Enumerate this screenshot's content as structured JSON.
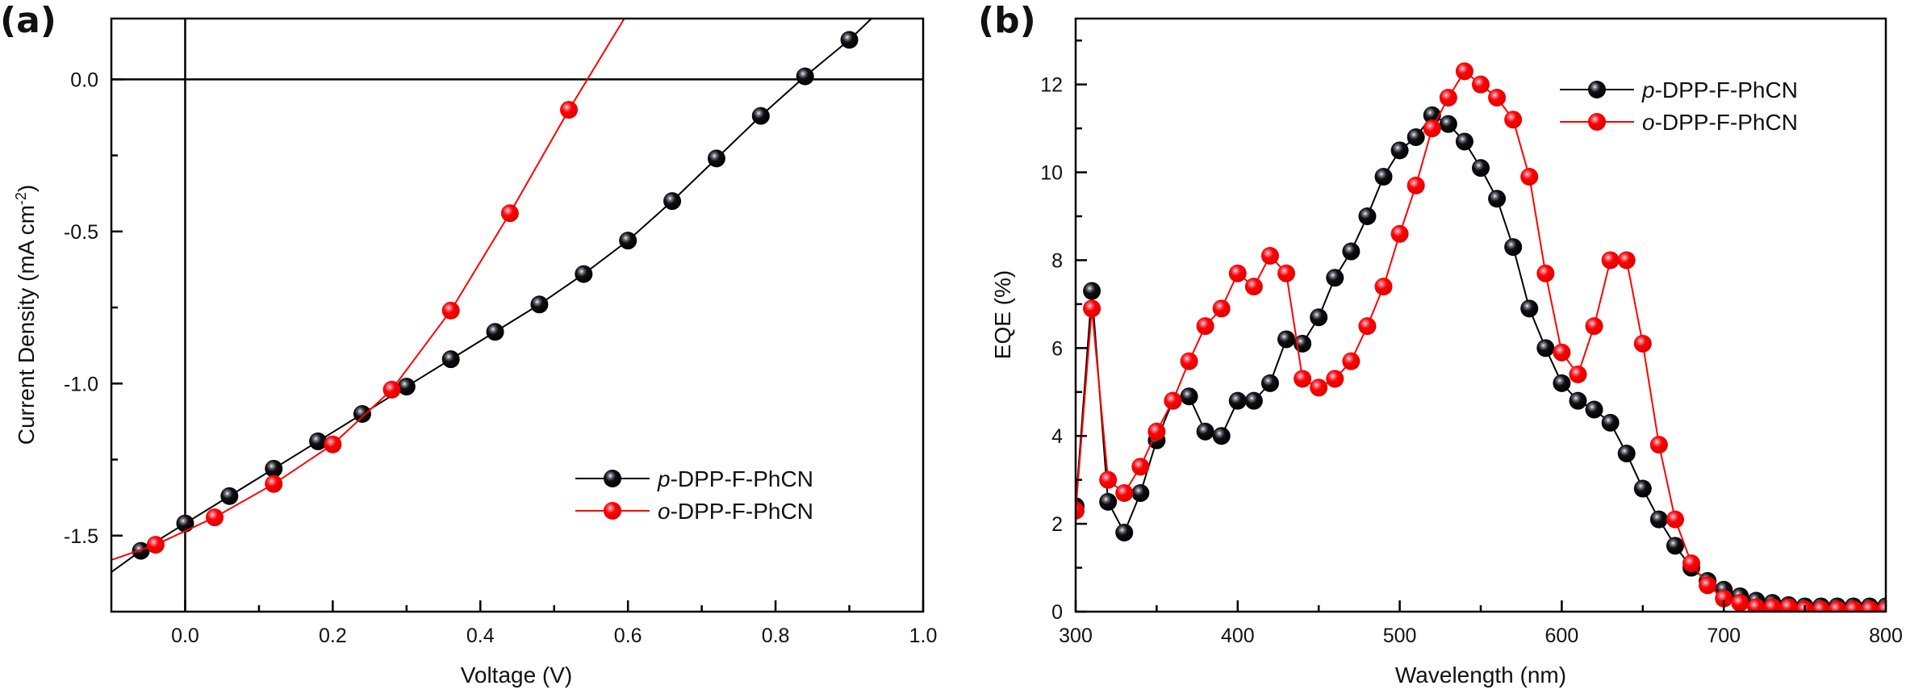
{
  "chart_data": [
    {
      "panel_label": "(a)",
      "type": "line",
      "title": "",
      "xlabel": "Voltage (V)",
      "ylabel": "Current Density (mA cm",
      "ylabel_sup": "-2",
      "ylabel_close": ")",
      "xlim": [
        -0.1,
        1.0
      ],
      "ylim": [
        -1.75,
        0.2
      ],
      "xticks": [
        0.0,
        0.2,
        0.4,
        0.6,
        0.8,
        1.0
      ],
      "xtick_labels": [
        "0.0",
        "0.2",
        "0.4",
        "0.6",
        "0.8",
        "1.0"
      ],
      "xminor": [
        -0.1,
        0.1,
        0.3,
        0.5,
        0.7,
        0.9
      ],
      "yticks": [
        0.0,
        -0.5,
        -1.0,
        -1.5
      ],
      "ytick_labels": [
        "0.0",
        "-0.5",
        "-1.0",
        "-1.5"
      ],
      "yminor": [
        -0.25,
        -0.75,
        -1.25
      ],
      "reference_lines": {
        "x": 0.0,
        "y": 0.0
      },
      "grid": false,
      "legend_position": "bottom-right",
      "series": [
        {
          "name": "p-DPP-F-PhCN",
          "prefix": "p",
          "suffix": "-DPP-F-PhCN",
          "color": "#000000",
          "x": [
            -0.06,
            0.0,
            0.06,
            0.12,
            0.18,
            0.24,
            0.3,
            0.36,
            0.42,
            0.48,
            0.54,
            0.6,
            0.66,
            0.72,
            0.78,
            0.84,
            0.9
          ],
          "y": [
            -1.55,
            -1.46,
            -1.37,
            -1.28,
            -1.19,
            -1.1,
            -1.01,
            -0.92,
            -0.83,
            -0.74,
            -0.64,
            -0.53,
            -0.4,
            -0.26,
            -0.12,
            0.01,
            0.13
          ],
          "line_extend": {
            "x0": -0.1,
            "y0": -1.62,
            "x1": 0.93,
            "y1": 0.2
          }
        },
        {
          "name": "o-DPP-F-PhCN",
          "prefix": "o",
          "suffix": "-DPP-F-PhCN",
          "color": "#ff0000",
          "x": [
            -0.04,
            0.04,
            0.12,
            0.2,
            0.28,
            0.36,
            0.44,
            0.52
          ],
          "y": [
            -1.53,
            -1.44,
            -1.33,
            -1.2,
            -1.02,
            -0.76,
            -0.44,
            -0.1
          ],
          "line_extend": {
            "x0": -0.1,
            "y0": -1.58,
            "x1": 0.595,
            "y1": 0.2
          }
        }
      ]
    },
    {
      "panel_label": "(b)",
      "type": "line",
      "title": "",
      "xlabel": "Wavelength (nm)",
      "ylabel": "EQE (%)",
      "xlim": [
        300,
        800
      ],
      "ylim": [
        0,
        13.5
      ],
      "xticks": [
        300,
        400,
        500,
        600,
        700,
        800
      ],
      "xtick_labels": [
        "300",
        "400",
        "500",
        "600",
        "700",
        "800"
      ],
      "xminor": [
        350,
        450,
        550,
        650,
        750
      ],
      "yticks": [
        0,
        2,
        4,
        6,
        8,
        10,
        12
      ],
      "ytick_labels": [
        "0",
        "2",
        "4",
        "6",
        "8",
        "10",
        "12"
      ],
      "yminor": [
        1,
        3,
        5,
        7,
        9,
        11,
        13
      ],
      "grid": false,
      "legend_position": "top-right",
      "series": [
        {
          "name": "p-DPP-F-PhCN",
          "prefix": "p",
          "suffix": "-DPP-F-PhCN",
          "color": "#000000",
          "x": [
            300,
            310,
            320,
            330,
            340,
            350,
            360,
            370,
            380,
            390,
            400,
            410,
            420,
            430,
            440,
            450,
            460,
            470,
            480,
            490,
            500,
            510,
            520,
            530,
            540,
            550,
            560,
            570,
            580,
            590,
            600,
            610,
            620,
            630,
            640,
            650,
            660,
            670,
            680,
            690,
            700,
            710,
            720,
            730,
            740,
            750,
            760,
            770,
            780,
            790,
            800
          ],
          "y": [
            2.4,
            7.3,
            2.5,
            1.8,
            2.7,
            3.9,
            4.8,
            4.9,
            4.1,
            4.0,
            4.8,
            4.8,
            5.2,
            6.2,
            6.1,
            6.7,
            7.6,
            8.2,
            9.0,
            9.9,
            10.5,
            10.8,
            11.3,
            11.1,
            10.7,
            10.1,
            9.4,
            8.3,
            6.9,
            6.0,
            5.2,
            4.8,
            4.6,
            4.3,
            3.6,
            2.8,
            2.1,
            1.5,
            1.0,
            0.7,
            0.5,
            0.35,
            0.25,
            0.2,
            0.15,
            0.12,
            0.12,
            0.12,
            0.12,
            0.12,
            0.12
          ]
        },
        {
          "name": "o-DPP-F-PhCN",
          "prefix": "o",
          "suffix": "-DPP-F-PhCN",
          "color": "#ff0000",
          "x": [
            300,
            310,
            320,
            330,
            340,
            350,
            360,
            370,
            380,
            390,
            400,
            410,
            420,
            430,
            440,
            450,
            460,
            470,
            480,
            490,
            500,
            510,
            520,
            530,
            540,
            550,
            560,
            570,
            580,
            590,
            600,
            610,
            620,
            630,
            640,
            650,
            660,
            670,
            680,
            690,
            700,
            710,
            720,
            730,
            740,
            750,
            760,
            770,
            780,
            790,
            800
          ],
          "y": [
            2.3,
            6.9,
            3.0,
            2.7,
            3.3,
            4.1,
            4.8,
            5.7,
            6.5,
            6.9,
            7.7,
            7.4,
            8.1,
            7.7,
            5.3,
            5.1,
            5.3,
            5.7,
            6.5,
            7.4,
            8.6,
            9.7,
            11.0,
            11.7,
            12.3,
            12.0,
            11.7,
            11.2,
            9.9,
            7.7,
            5.9,
            5.4,
            6.5,
            8.0,
            8.0,
            6.1,
            3.8,
            2.1,
            1.1,
            0.6,
            0.3,
            0.2,
            0.1,
            0.1,
            0.1,
            0.05,
            0.05,
            0.05,
            0.05,
            0.05,
            0.05
          ]
        }
      ]
    }
  ]
}
